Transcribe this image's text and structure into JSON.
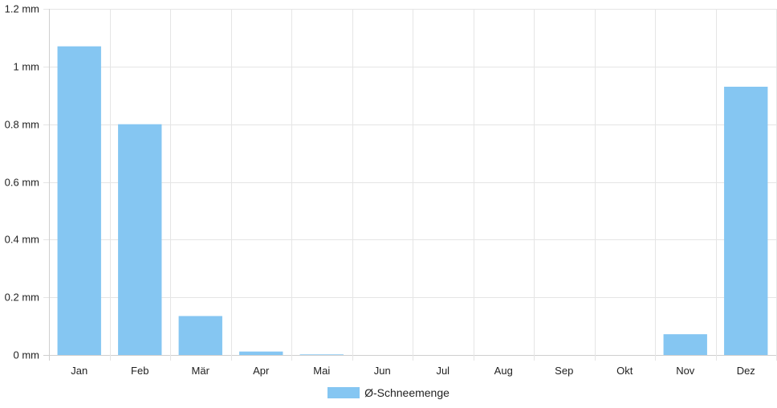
{
  "chart_data": {
    "type": "bar",
    "categories": [
      "Jan",
      "Feb",
      "Mär",
      "Apr",
      "Mai",
      "Jun",
      "Jul",
      "Aug",
      "Sep",
      "Okt",
      "Nov",
      "Dez"
    ],
    "series": [
      {
        "name": "Ø-Schneemenge",
        "values": [
          1.07,
          0.8,
          0.135,
          0.012,
          0.002,
          0,
          0,
          0,
          0,
          0,
          0.072,
          0.93
        ]
      }
    ],
    "ylim": [
      0,
      1.2
    ],
    "yticks": [
      0,
      0.2,
      0.4,
      0.6,
      0.8,
      1,
      1.2
    ],
    "y_unit": " mm",
    "grid": true,
    "legend_position": "bottom",
    "colors": {
      "bar": "#85c6f2",
      "grid": "#e5e5e5",
      "axis": "#cfcfcf"
    }
  }
}
